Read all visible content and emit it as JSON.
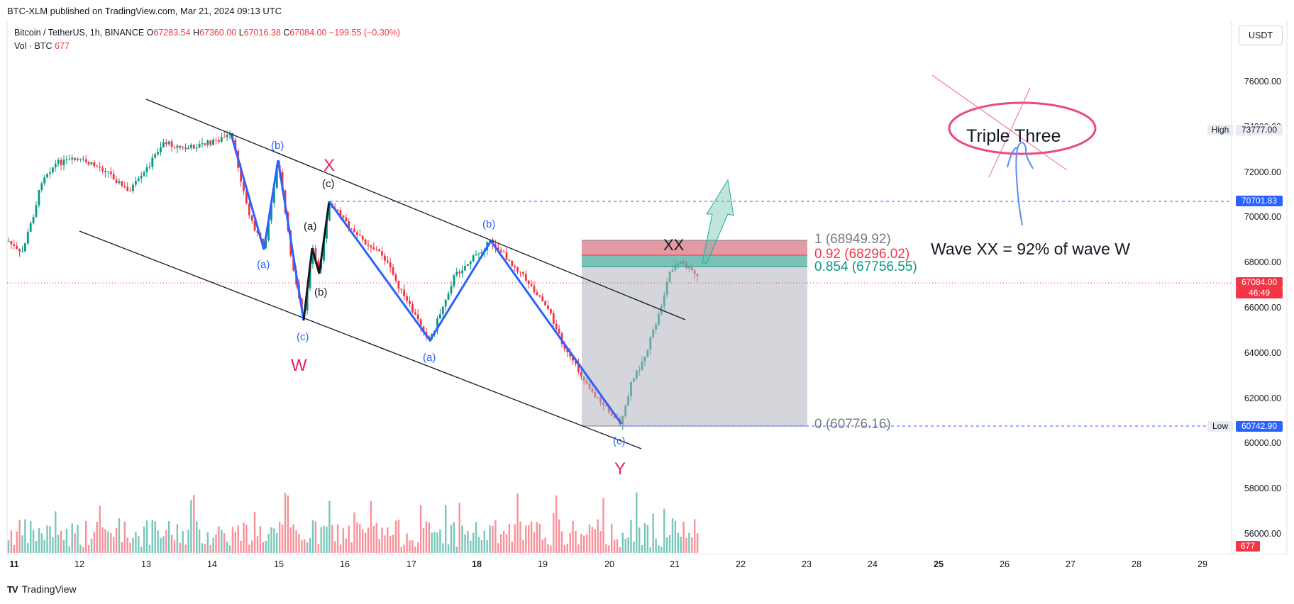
{
  "publish_line": "BTC-XLM published on TradingView.com, Mar 21, 2024 09:13 UTC",
  "legend": {
    "symbol": "Bitcoin / TetherUS, 1h, BINANCE",
    "o_label": "O",
    "o": "67283.54",
    "h_label": "H",
    "h": "67360.00",
    "l_label": "L",
    "l": "67016.38",
    "c_label": "C",
    "c": "67084.00",
    "change": "−199.55 (−0.30%)",
    "vol_label": "Vol · BTC",
    "vol": "677"
  },
  "currency": "USDT",
  "price_axis": [
    "76000.00",
    "74000.00",
    "72000.00",
    "70000.00",
    "68000.00",
    "66000.00",
    "64000.00",
    "62000.00",
    "60000.00",
    "58000.00",
    "56000.00"
  ],
  "date_axis": [
    "11",
    "12",
    "13",
    "14",
    "15",
    "16",
    "17",
    "18",
    "19",
    "20",
    "21",
    "22",
    "23",
    "24",
    "25",
    "26",
    "27",
    "28",
    "29"
  ],
  "bold_dates": [
    "11",
    "18",
    "25"
  ],
  "price_tags": {
    "high_label": "High",
    "high": "73777.00",
    "level": "70701.83",
    "last": "67084.00",
    "countdown": "46:49",
    "low_label": "Low",
    "low": "60742.90",
    "volume": "677"
  },
  "annotations": {
    "triple_three": "Triple Three",
    "wave_note": "Wave XX = 92% of wave W",
    "fib_1": "1 (68949.92)",
    "fib_092": "0.92 (68296.02)",
    "fib_0854": "0.854 (67756.55)",
    "fib_0": "0 (60776.16)",
    "xx": "XX",
    "W": "W",
    "X": "X",
    "Y": "Y",
    "a1": "(a)",
    "b1": "(b)",
    "c1": "(c)",
    "a2": "(a)",
    "b2": "(b)",
    "c2": "(c)",
    "a3": "(a)",
    "b3": "(b)",
    "c3": "(c)"
  },
  "colors": {
    "up": "#089981",
    "down": "#f23645",
    "wave_blue": "#2962ff",
    "wave_label_red": "#e91e63",
    "fib_gray": "#787b86",
    "fib_red": "#f23645",
    "fib_green": "#089981",
    "dashed_blue": "#2962ff"
  },
  "footer": {
    "brand": "TradingView",
    "logo": "TV"
  }
}
